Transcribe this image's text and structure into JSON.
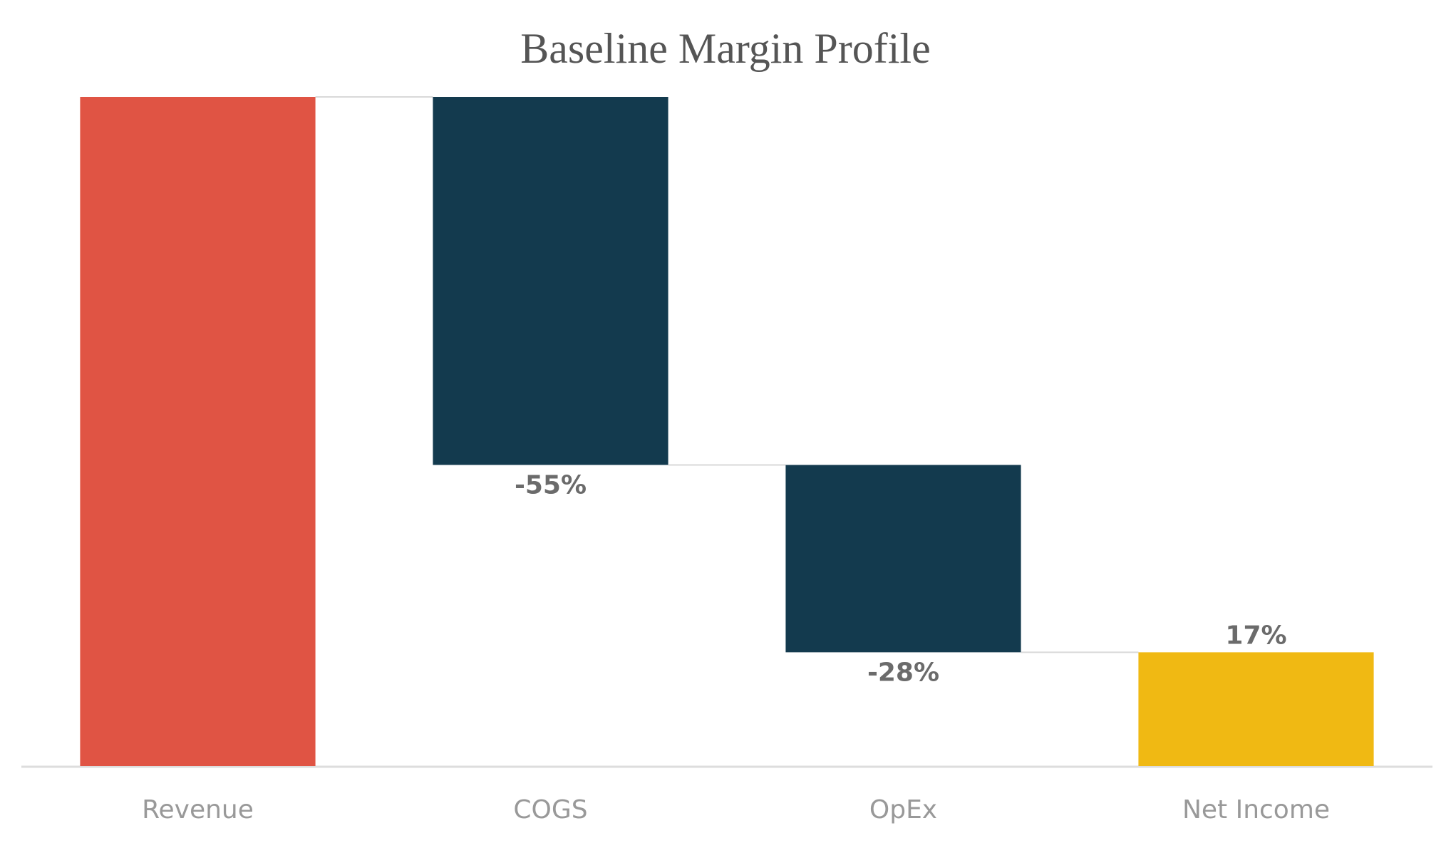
{
  "chart_data": {
    "type": "waterfall",
    "title": "Baseline Margin Profile",
    "categories": [
      "Revenue",
      "COGS",
      "OpEx",
      "Net Income"
    ],
    "measures": [
      "absolute",
      "relative",
      "relative",
      "total"
    ],
    "values": [
      100,
      -55,
      -28,
      17
    ],
    "value_labels": [
      null,
      "-55%",
      "-28%",
      "17%"
    ],
    "colors": [
      "#e05444",
      "#133a4e",
      "#133a4e",
      "#f0b913"
    ],
    "ylim": [
      0,
      100
    ],
    "grid": false
  }
}
